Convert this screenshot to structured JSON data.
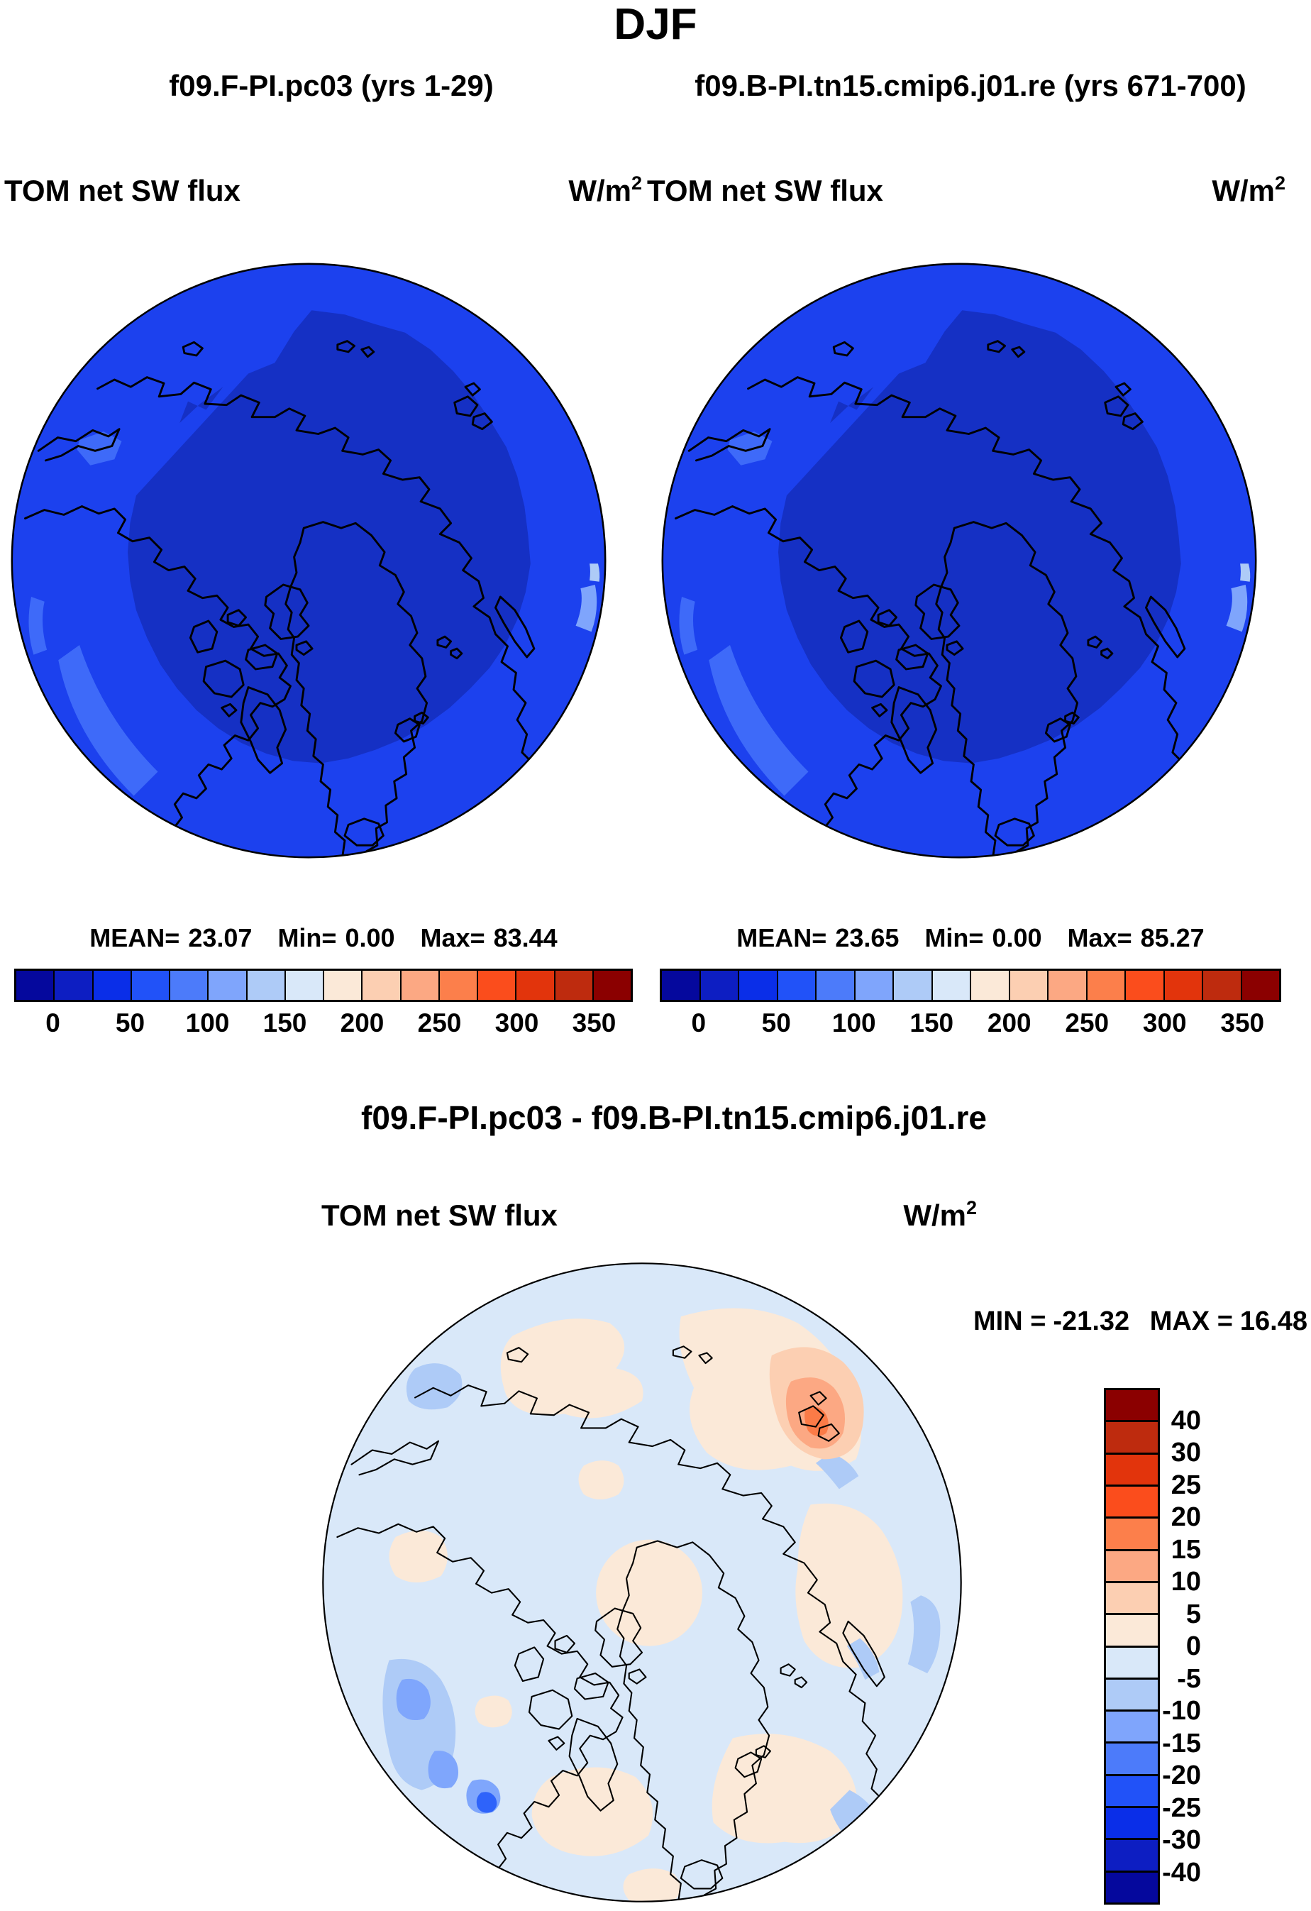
{
  "title": "DJF",
  "panels": [
    {
      "subtitle": "f09.F-PI.pc03 (yrs 1-29)",
      "var_label": "TOM net SW flux",
      "units_base": "W/m",
      "units_exp": "2",
      "stats": {
        "mean_label": "MEAN=",
        "mean": "23.07",
        "min_label": "Min=",
        "min": "0.00",
        "max_label": "Max=",
        "max": "83.44"
      }
    },
    {
      "subtitle": "f09.B-PI.tn15.cmip6.j01.re (yrs 671-700)",
      "var_label": "TOM net SW flux",
      "units_base": "W/m",
      "units_exp": "2",
      "stats": {
        "mean_label": "MEAN=",
        "mean": "23.65",
        "min_label": "Min=",
        "min": "0.00",
        "max_label": "Max=",
        "max": "85.27"
      }
    }
  ],
  "colorbar": {
    "tick_labels": [
      "0",
      "50",
      "100",
      "150",
      "200",
      "250",
      "300",
      "350"
    ],
    "colors_left_to_right": [
      "#05089D",
      "#0D1EC2",
      "#0A2EE8",
      "#2152F8",
      "#4C7BFA",
      "#7FA5FC",
      "#AECBF7",
      "#D9E8F9",
      "#FBE9D8",
      "#FCCFB2",
      "#FCA883",
      "#FC7F4B",
      "#FB4D1C",
      "#E2340C",
      "#BE2B0E",
      "#8B0000"
    ]
  },
  "diff": {
    "title": "f09.F-PI.pc03 - f09.B-PI.tn15.cmip6.j01.re",
    "var_label": "TOM net SW flux",
    "units_base": "W/m",
    "units_exp": "2",
    "minmax": {
      "min_label": "MIN =",
      "min": "-21.32",
      "max_label": "MAX =",
      "max": "16.48"
    },
    "colorbar": {
      "tick_labels_top_to_bottom": [
        "40",
        "30",
        "25",
        "20",
        "15",
        "10",
        "5",
        "0",
        "-5",
        "-10",
        "-15",
        "-20",
        "-25",
        "-30",
        "-40"
      ]
    }
  },
  "map_colors": {
    "ocean_outer": "#1C41EE",
    "ocean_inner": "#1530C4",
    "rim_light": "#3E6AF9",
    "rim_lighter": "#7FA5FC",
    "rim_palest": "#AECBF7",
    "coastline": "#000000",
    "diff_base": "#D9E8F9",
    "diff_pos": "#FBE9D8",
    "diff_pos2": "#FCCFB2",
    "diff_pos3": "#FCA883",
    "diff_pos4": "#FB7B47",
    "diff_neg1": "#AECBF7",
    "diff_neg2": "#7FA6FC",
    "diff_neg3": "#2E63FA"
  },
  "chart_data": [
    {
      "type": "heatmap",
      "subtype": "north-polar-stereographic-filled-contour-map",
      "season": "DJF",
      "title": "f09.F-PI.pc03 (yrs 1-29)",
      "variable": "TOM net SW flux",
      "units": "W/m2",
      "stats": {
        "mean": 23.07,
        "min": 0.0,
        "max": 83.44
      },
      "contour_levels": [
        0,
        25,
        50,
        75,
        100,
        125,
        150,
        175,
        200,
        225,
        250,
        275,
        300,
        325,
        350
      ],
      "labeled_levels": [
        0,
        50,
        100,
        150,
        200,
        250,
        300,
        350
      ],
      "palette": [
        "#05089D",
        "#0D1EC2",
        "#0A2EE8",
        "#2152F8",
        "#4C7BFA",
        "#7FA5FC",
        "#AECBF7",
        "#D9E8F9",
        "#FBE9D8",
        "#FCCFB2",
        "#FCA883",
        "#FC7F4B",
        "#FB4D1C",
        "#E2340C",
        "#BE2B0E",
        "#8B0000"
      ],
      "legend_position": "below",
      "notes": "Mostly 0-50 W/m2 over the Arctic in winter; inner polar region < 25, outer annulus 25-50"
    },
    {
      "type": "heatmap",
      "subtype": "north-polar-stereographic-filled-contour-map",
      "season": "DJF",
      "title": "f09.B-PI.tn15.cmip6.j01.re (yrs 671-700)",
      "variable": "TOM net SW flux",
      "units": "W/m2",
      "stats": {
        "mean": 23.65,
        "min": 0.0,
        "max": 85.27
      },
      "contour_levels": [
        0,
        25,
        50,
        75,
        100,
        125,
        150,
        175,
        200,
        225,
        250,
        275,
        300,
        325,
        350
      ],
      "labeled_levels": [
        0,
        50,
        100,
        150,
        200,
        250,
        300,
        350
      ],
      "palette": [
        "#05089D",
        "#0D1EC2",
        "#0A2EE8",
        "#2152F8",
        "#4C7BFA",
        "#7FA5FC",
        "#AECBF7",
        "#D9E8F9",
        "#FBE9D8",
        "#FCCFB2",
        "#FCA883",
        "#FC7F4B",
        "#FB4D1C",
        "#E2340C",
        "#BE2B0E",
        "#8B0000"
      ],
      "legend_position": "below"
    },
    {
      "type": "heatmap",
      "subtype": "north-polar-stereographic-filled-contour-difference-map",
      "season": "DJF",
      "title": "f09.F-PI.pc03 - f09.B-PI.tn15.cmip6.j01.re",
      "variable": "TOM net SW flux",
      "units": "W/m2",
      "stats": {
        "min": -21.32,
        "max": 16.48
      },
      "contour_levels": [
        -40,
        -30,
        -25,
        -20,
        -15,
        -10,
        -5,
        0,
        5,
        10,
        15,
        20,
        25,
        30,
        40
      ],
      "palette_top_to_bottom": [
        "#8B0000",
        "#BE2B0E",
        "#E2340C",
        "#FB4D1C",
        "#FC7F4B",
        "#FCA883",
        "#FCCFB2",
        "#FBE9D8",
        "#D9E8F9",
        "#AECBF7",
        "#7FA5FC",
        "#4C7BFA",
        "#2152F8",
        "#0A2EE8",
        "#0D1EC2",
        "#05089D"
      ],
      "legend_position": "right",
      "notes": "Differences mostly between -5 and +5 W/m2; small negative patches (to -21) near Alaska/Bering, small positive spot (to +16) near Severnaya Zemlya"
    }
  ]
}
